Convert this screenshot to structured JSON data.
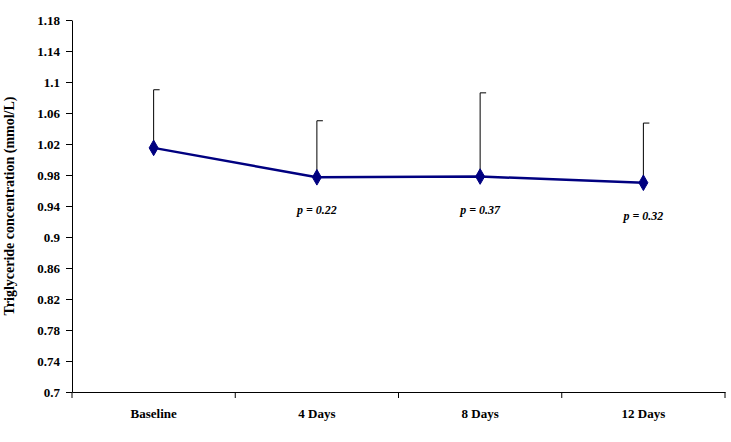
{
  "chart_data": {
    "type": "line",
    "y_label": "Triglyceride concentration (mmol/L)",
    "categories": [
      "Baseline",
      "4 Days",
      "8 Days",
      "12 Days"
    ],
    "values": [
      1.015,
      0.977,
      0.978,
      0.97
    ],
    "errors": [
      0.075,
      0.073,
      0.108,
      0.077
    ],
    "annotations": [
      null,
      "p = 0.22",
      "p = 0.37",
      "p = 0.32"
    ],
    "color": "#000080",
    "marker": "diamond",
    "ylim": [
      0.7,
      1.18
    ],
    "yticks": [
      0.7,
      0.74,
      0.78,
      0.82,
      0.86,
      0.9,
      0.94,
      0.98,
      1.02,
      1.06,
      1.1,
      1.14,
      1.18
    ],
    "grid": false
  }
}
